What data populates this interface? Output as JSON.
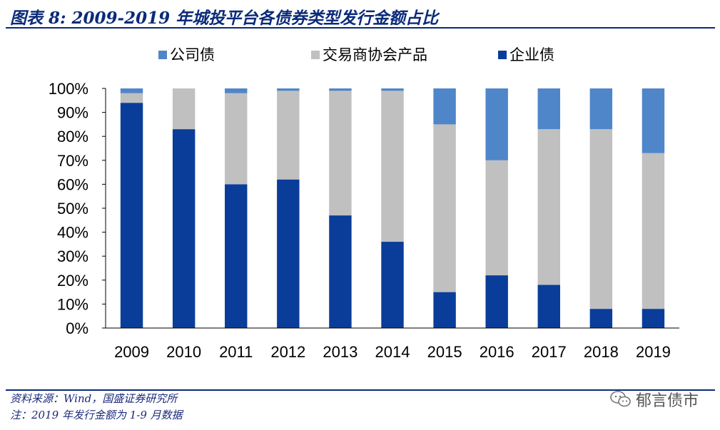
{
  "title": "图表 8:  2009-2019 年城投平台各债券类型发行金额占比",
  "source": "资料来源：Wind，国盛证券研究所",
  "note": "注：2019 年发行金额为 1-9 月数据",
  "watermark": "郁言债市",
  "chart_data": {
    "type": "bar",
    "stacked": true,
    "percent": true,
    "categories": [
      "2009",
      "2010",
      "2011",
      "2012",
      "2013",
      "2014",
      "2015",
      "2016",
      "2017",
      "2018",
      "2019"
    ],
    "series": [
      {
        "name": "企业债",
        "color": "#0a3d9a",
        "values": [
          94,
          83,
          60,
          62,
          47,
          36,
          15,
          22,
          18,
          8,
          8
        ]
      },
      {
        "name": "交易商协会产品",
        "color": "#c0c0c0",
        "values": [
          4,
          17,
          38,
          37,
          52,
          63,
          70,
          48,
          65,
          75,
          65
        ]
      },
      {
        "name": "公司债",
        "color": "#4f86c9",
        "values": [
          2,
          0,
          2,
          1,
          1,
          1,
          15,
          30,
          17,
          17,
          27
        ]
      }
    ],
    "legend_order": [
      "公司债",
      "交易商协会产品",
      "企业债"
    ],
    "ylim": [
      0,
      100
    ],
    "yticks": [
      "0%",
      "10%",
      "20%",
      "30%",
      "40%",
      "50%",
      "60%",
      "70%",
      "80%",
      "90%",
      "100%"
    ],
    "legend_position": "top"
  }
}
